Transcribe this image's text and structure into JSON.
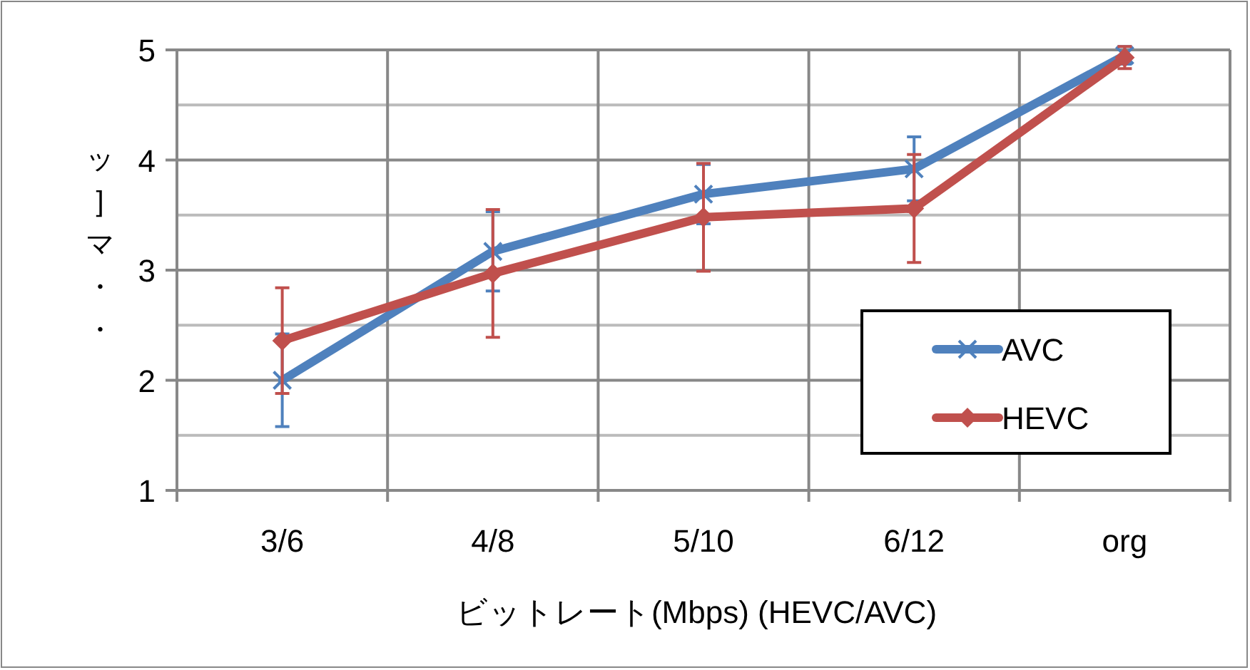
{
  "chart_data": {
    "type": "line",
    "xlabel": "ビットレート(Mbps) (HEVC/AVC)",
    "ylabel": "ッ]マ・・",
    "categories": [
      "3/6",
      "4/8",
      "5/10",
      "6/12",
      "org"
    ],
    "series": [
      {
        "name": "AVC",
        "color": "#4f81bd",
        "values": [
          2.0,
          3.17,
          3.69,
          3.92,
          4.95
        ],
        "errors": [
          0.42,
          0.36,
          0.27,
          0.29,
          0.08
        ],
        "marker": "cross"
      },
      {
        "name": "HEVC",
        "color": "#c0504d",
        "values": [
          2.36,
          2.97,
          3.48,
          3.56,
          4.93
        ],
        "errors": [
          0.48,
          0.58,
          0.49,
          0.49,
          0.1
        ],
        "marker": "diamond"
      }
    ],
    "ylim": [
      1,
      5
    ],
    "yticks": [
      1,
      {
        "value": 1.5,
        "label": null
      },
      2,
      {
        "value": 2.5,
        "label": null
      },
      3,
      {
        "value": 3.5,
        "label": null
      },
      4,
      {
        "value": 4.5,
        "label": null
      },
      5
    ],
    "grid": true,
    "legend": "bottom right",
    "line_style": "solid"
  }
}
